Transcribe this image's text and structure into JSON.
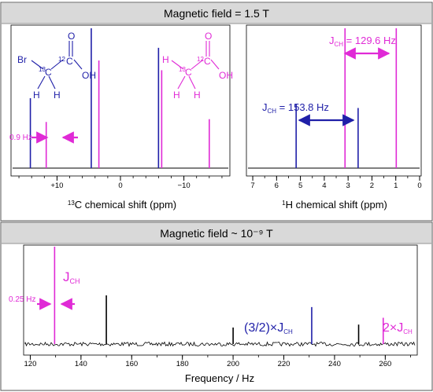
{
  "colors": {
    "blue": "#1f1fa8",
    "magenta": "#e02ad6",
    "black": "#000000",
    "header_bg": "#d9d9d9"
  },
  "top": {
    "header": "Magnetic field = 1.5 T",
    "c13": {
      "xlabel_sup": "13",
      "xlabel_rest": "C chemical shift (ppm)",
      "ticks": [
        "+10",
        "0",
        "−10"
      ],
      "coupling_label": "0.9 Hz"
    },
    "h1": {
      "xlabel_sup": "1",
      "xlabel_rest": "H chemical shift (ppm)",
      "ticks": [
        "7",
        "6",
        "5",
        "4",
        "3",
        "2",
        "1",
        "0"
      ],
      "jch_blue": {
        "main": "J",
        "sub": "CH",
        "value": " = 153.8 Hz"
      },
      "jch_magenta": {
        "main": "J",
        "sub": "CH",
        "value": " = 129.6 Hz"
      }
    },
    "molecules": {
      "bromoacetic": {
        "br": "Br",
        "o": "O",
        "oh": "OH",
        "h1": "H",
        "h2": "H",
        "c": "C",
        "c13": "13",
        "c12": "12"
      },
      "acetic": {
        "h0": "H",
        "o": "O",
        "oh": "OH",
        "h1": "H",
        "h2": "H",
        "c": "C",
        "c13": "13",
        "c12": "12"
      }
    }
  },
  "bottom": {
    "header": "Magnetic field ~ 10⁻⁹ T",
    "xlabel": "Frequency / Hz",
    "ticks": [
      "120",
      "140",
      "160",
      "180",
      "200",
      "220",
      "240",
      "260"
    ],
    "coupling_label": "0.25 Hz",
    "jch": {
      "main": "J",
      "sub": "CH"
    },
    "peak_mid": {
      "prefix": "(3/2)×",
      "main": "J",
      "sub": "CH"
    },
    "peak_right": {
      "prefix": "2×",
      "main": "J",
      "sub": "CH"
    }
  },
  "chart_data": [
    {
      "type": "line",
      "xlabel": "13C chemical shift (ppm)",
      "xlim": [
        17,
        -17
      ],
      "ticks": [
        10,
        0,
        -10
      ],
      "series": [
        {
          "color": "blue",
          "peaks": [
            {
              "x": 14.2,
              "height": 0.5
            },
            {
              "x": 4.6,
              "height": 1.0
            },
            {
              "x": -6.0,
              "height": 0.86
            }
          ]
        },
        {
          "color": "magenta",
          "peaks": [
            {
              "x": 11.7,
              "height": 0.33
            },
            {
              "x": 3.4,
              "height": 0.77
            },
            {
              "x": -6.5,
              "height": 0.7
            },
            {
              "x": -14.0,
              "height": 0.35
            }
          ]
        }
      ]
    },
    {
      "type": "line",
      "xlabel": "1H chemical shift (ppm)",
      "xlim": [
        7.2,
        0
      ],
      "ticks": [
        7,
        6,
        5,
        4,
        3,
        2,
        1,
        0
      ],
      "series": [
        {
          "color": "blue",
          "peaks": [
            {
              "x": 5.18,
              "height": 0.46
            },
            {
              "x": 2.58,
              "height": 0.43
            }
          ]
        },
        {
          "color": "magenta",
          "peaks": [
            {
              "x": 3.13,
              "height": 1.0
            },
            {
              "x": 0.98,
              "height": 1.0
            }
          ]
        }
      ]
    },
    {
      "type": "line",
      "xlabel": "Frequency / Hz",
      "xlim": [
        118,
        272
      ],
      "ticks": [
        120,
        140,
        160,
        180,
        200,
        220,
        240,
        260
      ],
      "series": [
        {
          "color": "magenta",
          "peaks": [
            {
              "x": 129.6,
              "height": 1.0
            },
            {
              "x": 259.2,
              "height": 0.27
            }
          ]
        },
        {
          "color": "blue",
          "peaks": [
            {
              "x": 231.0,
              "height": 0.38
            }
          ]
        },
        {
          "color": "black",
          "peaks": [
            {
              "x": 150.0,
              "height": 0.5
            },
            {
              "x": 200.0,
              "height": 0.17
            },
            {
              "x": 249.5,
              "height": 0.2
            }
          ]
        }
      ]
    }
  ]
}
